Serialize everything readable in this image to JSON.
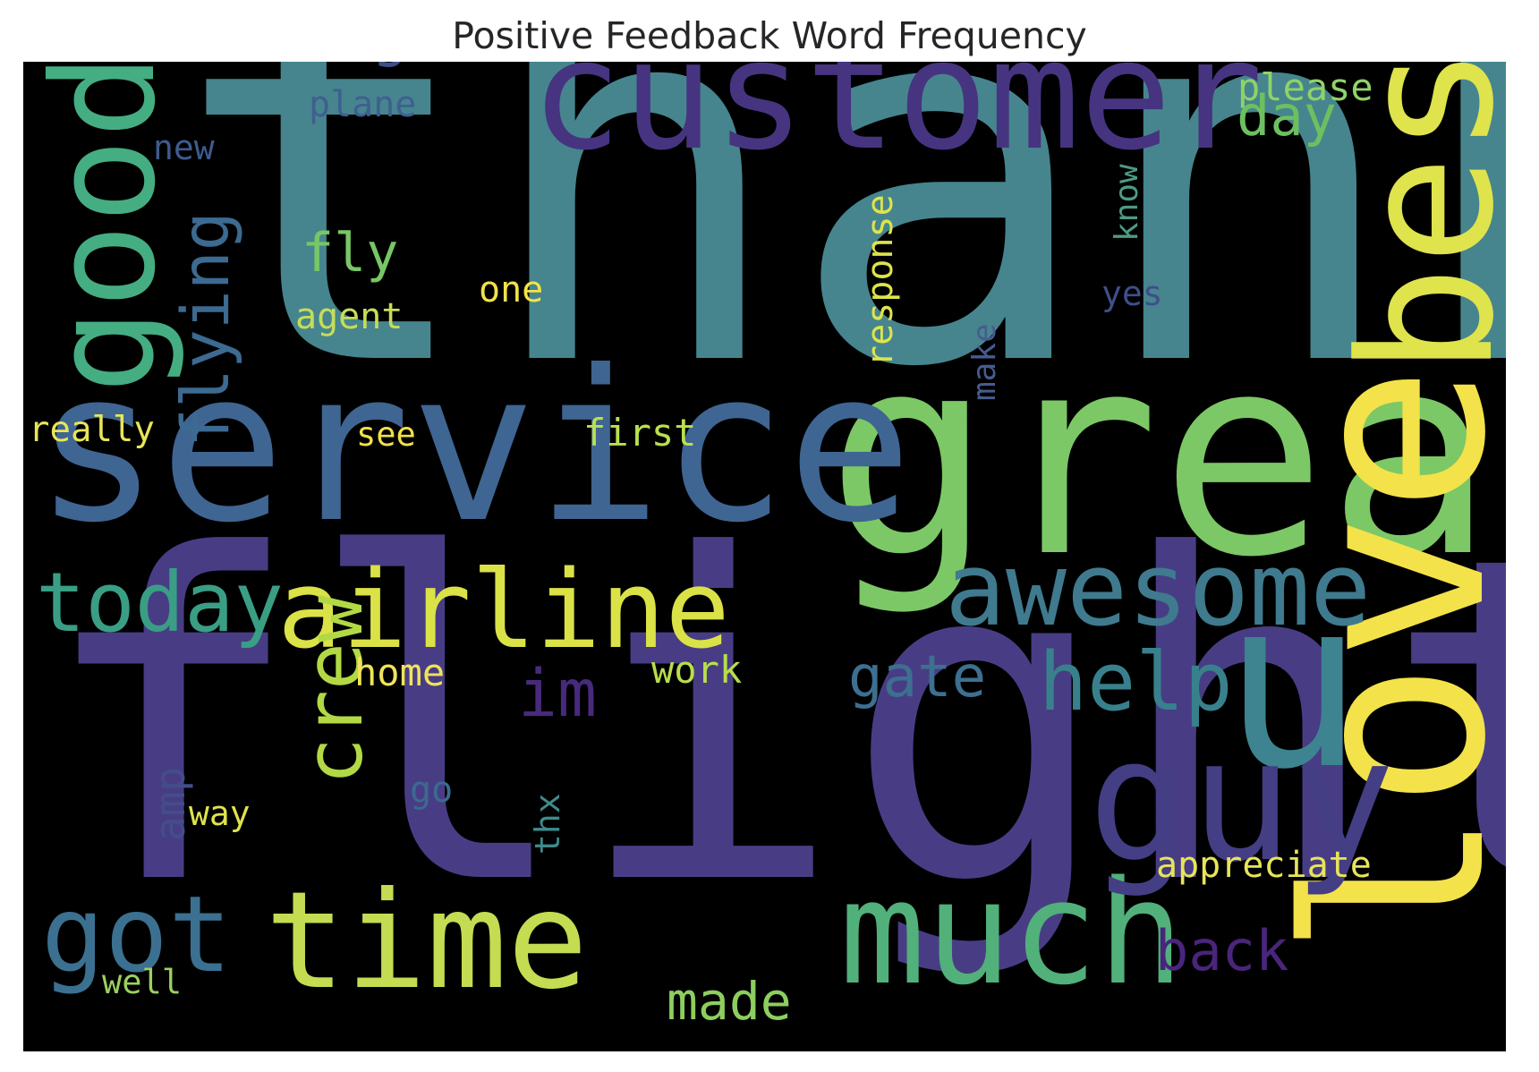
{
  "chart_data": {
    "type": "wordcloud",
    "title": "Positive Feedback Word Frequency",
    "colormap": "viridis",
    "background": "#000000",
    "words": [
      {
        "text": "thank",
        "weight": 1.0,
        "color": "#46858e",
        "rotate": false
      },
      {
        "text": "flight",
        "weight": 0.92,
        "color": "#483d85",
        "rotate": false
      },
      {
        "text": "great",
        "weight": 0.6,
        "color": "#7cc866",
        "rotate": false
      },
      {
        "text": "service",
        "weight": 0.56,
        "color": "#3f6592",
        "rotate": false
      },
      {
        "text": "customer",
        "weight": 0.42,
        "color": "#463480",
        "rotate": false
      },
      {
        "text": "love",
        "weight": 0.58,
        "color": "#f3e24a",
        "rotate": true
      },
      {
        "text": "best",
        "weight": 0.45,
        "color": "#dfe34c",
        "rotate": true
      },
      {
        "text": "u",
        "weight": 0.48,
        "color": "#3e8390",
        "rotate": false
      },
      {
        "text": "much",
        "weight": 0.38,
        "color": "#52b07a",
        "rotate": false
      },
      {
        "text": "good",
        "weight": 0.36,
        "color": "#45ad82",
        "rotate": true
      },
      {
        "text": "time",
        "weight": 0.36,
        "color": "#c3dc52",
        "rotate": false
      },
      {
        "text": "guy",
        "weight": 0.35,
        "color": "#443e85",
        "rotate": false
      },
      {
        "text": "airline",
        "weight": 0.28,
        "color": "#dae247",
        "rotate": false
      },
      {
        "text": "awesome",
        "weight": 0.26,
        "color": "#3f7a8e",
        "rotate": false
      },
      {
        "text": "got",
        "weight": 0.27,
        "color": "#3b7090",
        "rotate": false
      },
      {
        "text": "today",
        "weight": 0.23,
        "color": "#3a9e85",
        "rotate": false
      },
      {
        "text": "help",
        "weight": 0.22,
        "color": "#38818c",
        "rotate": false
      },
      {
        "text": "crew",
        "weight": 0.18,
        "color": "#b2d945",
        "rotate": true
      },
      {
        "text": "flying",
        "weight": 0.17,
        "color": "#3c6a91",
        "rotate": true
      },
      {
        "text": "amazing",
        "weight": 0.15,
        "color": "#3f4e86",
        "rotate": false
      },
      {
        "text": "gate",
        "weight": 0.15,
        "color": "#3d6f90",
        "rotate": false
      },
      {
        "text": "im",
        "weight": 0.15,
        "color": "#472a7c",
        "rotate": false
      },
      {
        "text": "back",
        "weight": 0.15,
        "color": "#49257b",
        "rotate": false
      },
      {
        "text": "day",
        "weight": 0.14,
        "color": "#6cc060",
        "rotate": false
      },
      {
        "text": "fly",
        "weight": 0.14,
        "color": "#78c666",
        "rotate": false
      },
      {
        "text": "made",
        "weight": 0.14,
        "color": "#8dce5f",
        "rotate": false
      },
      {
        "text": "amp",
        "weight": 0.1,
        "color": "#434d8a",
        "rotate": true
      },
      {
        "text": "response",
        "weight": 0.09,
        "color": "#dde34c",
        "rotate": true
      },
      {
        "text": "appreciate",
        "weight": 0.09,
        "color": "#e7e45a",
        "rotate": false
      },
      {
        "text": "plane",
        "weight": 0.085,
        "color": "#3f5f90",
        "rotate": false
      },
      {
        "text": "work",
        "weight": 0.088,
        "color": "#b8de4b",
        "rotate": false
      },
      {
        "text": "home",
        "weight": 0.088,
        "color": "#f0e35a",
        "rotate": false
      },
      {
        "text": "please",
        "weight": 0.083,
        "color": "#8fd269",
        "rotate": false
      },
      {
        "text": "first",
        "weight": 0.08,
        "color": "#b9e04f",
        "rotate": false
      },
      {
        "text": "agent",
        "weight": 0.08,
        "color": "#c5dd58",
        "rotate": false
      },
      {
        "text": "really",
        "weight": 0.08,
        "color": "#e7e55a",
        "rotate": false
      },
      {
        "text": "one",
        "weight": 0.078,
        "color": "#f2e249",
        "rotate": false
      },
      {
        "text": "know",
        "weight": 0.078,
        "color": "#4d9a84",
        "rotate": true
      },
      {
        "text": "make",
        "weight": 0.075,
        "color": "#465c90",
        "rotate": true
      },
      {
        "text": "new",
        "weight": 0.075,
        "color": "#3f5b8e",
        "rotate": false
      },
      {
        "text": "yes",
        "weight": 0.075,
        "color": "#3e4f88",
        "rotate": false
      },
      {
        "text": "see",
        "weight": 0.075,
        "color": "#f3e04a",
        "rotate": false
      },
      {
        "text": "way",
        "weight": 0.075,
        "color": "#dfe34c",
        "rotate": false
      },
      {
        "text": "go",
        "weight": 0.072,
        "color": "#3c6a8f",
        "rotate": false
      },
      {
        "text": "thx",
        "weight": 0.07,
        "color": "#3f8a8c",
        "rotate": true
      },
      {
        "text": "well",
        "weight": 0.07,
        "color": "#9bd060",
        "rotate": false
      }
    ]
  }
}
